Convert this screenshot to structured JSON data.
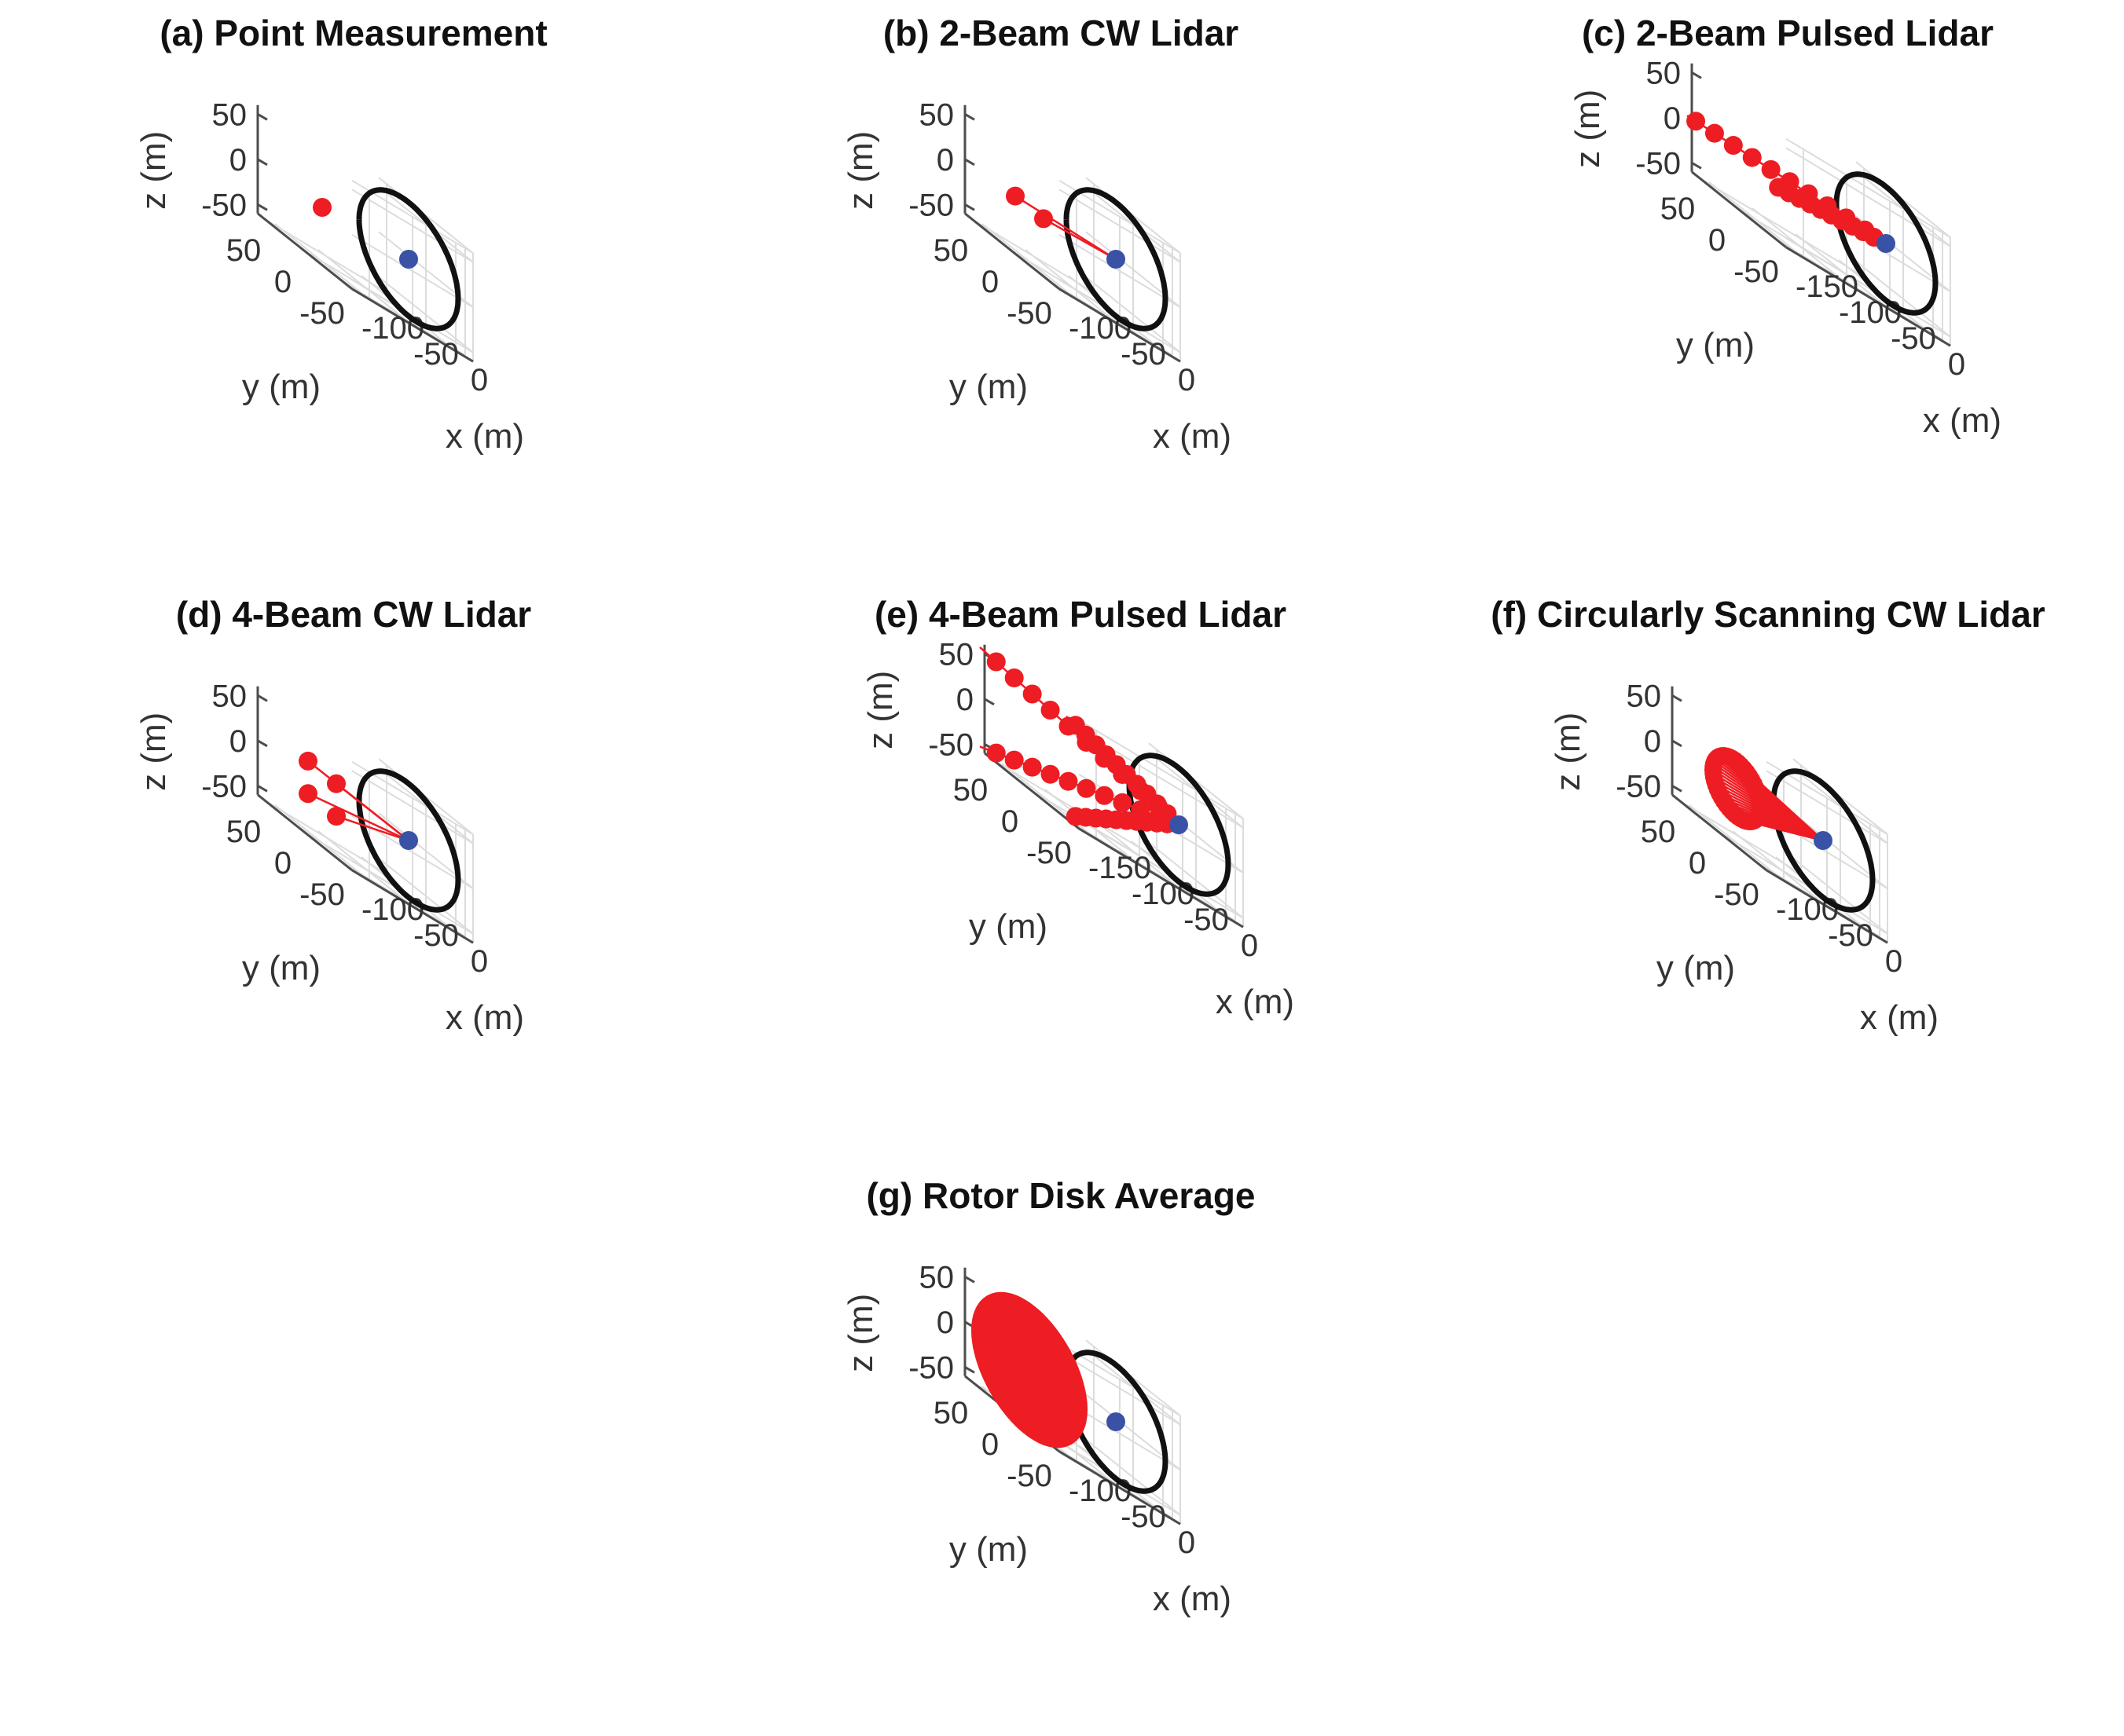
{
  "figure": {
    "colors": {
      "background": "#ffffff",
      "grid": "#dcdcdc",
      "axis": "#4d4d4d",
      "rotor": "#111111",
      "hub": "#3a52a5",
      "lidar": "#ee1d23"
    }
  },
  "chart_data": [
    {
      "id": "a",
      "type": "scatter3d",
      "title": "(a) Point Measurement",
      "xlabel": "x (m)",
      "ylabel": "y (m)",
      "zlabel": "z (m)",
      "xlim": [
        -120,
        20
      ],
      "ylim": [
        -60,
        60
      ],
      "zlim": [
        -60,
        60
      ],
      "xticks": [
        "-100",
        "-50",
        "0"
      ],
      "yticks": [
        "50",
        "0",
        "-50"
      ],
      "zticks": [
        "50",
        "0",
        "-50"
      ],
      "rotor": {
        "center": [
          0,
          0,
          0
        ],
        "diameter": 126
      },
      "hub": [
        0,
        0,
        0
      ],
      "series": [
        {
          "name": "measurement points",
          "mode": "point",
          "beams": [
            [
              -100,
              0,
              0
            ]
          ]
        }
      ]
    },
    {
      "id": "b",
      "type": "scatter3d",
      "title": "(b) 2-Beam CW Lidar",
      "xlabel": "x (m)",
      "ylabel": "y (m)",
      "zlabel": "z (m)",
      "xlim": [
        -120,
        20
      ],
      "ylim": [
        -60,
        60
      ],
      "zlim": [
        -60,
        60
      ],
      "xticks": [
        "-100",
        "-50",
        "0"
      ],
      "yticks": [
        "50",
        "0",
        "-50"
      ],
      "zticks": [
        "50",
        "0",
        "-50"
      ],
      "rotor": {
        "center": [
          0,
          0,
          0
        ],
        "diameter": 126
      },
      "hub": [
        0,
        0,
        0
      ],
      "series": [
        {
          "name": "beams",
          "mode": "cw",
          "beams": [
            [
              -100,
              18,
              0
            ],
            [
              -100,
              -18,
              0
            ]
          ]
        }
      ]
    },
    {
      "id": "c",
      "type": "scatter3d",
      "title": "(c) 2-Beam Pulsed Lidar",
      "xlabel": "x (m)",
      "ylabel": "y (m)",
      "zlabel": "z (m)",
      "xlim": [
        -170,
        20
      ],
      "ylim": [
        -60,
        60
      ],
      "zlim": [
        -60,
        60
      ],
      "xticks": [
        "-150",
        "-100",
        "-50",
        "0"
      ],
      "yticks": [
        "50",
        "0",
        "-50"
      ],
      "zticks": [
        "50",
        "0",
        "-50"
      ],
      "rotor": {
        "center": [
          0,
          0,
          0
        ],
        "diameter": 126
      },
      "hub": [
        0,
        0,
        0
      ],
      "series": [
        {
          "name": "beams",
          "mode": "pulsed",
          "gates": [
            20,
            180
          ],
          "n_gates": 10,
          "beams": [
            [
              -180,
              55,
              0
            ],
            [
              -180,
              -55,
              0
            ]
          ]
        }
      ]
    },
    {
      "id": "d",
      "type": "scatter3d",
      "title": "(d) 4-Beam CW Lidar",
      "xlabel": "x (m)",
      "ylabel": "y (m)",
      "zlabel": "z (m)",
      "xlim": [
        -120,
        20
      ],
      "ylim": [
        -60,
        60
      ],
      "zlim": [
        -60,
        60
      ],
      "xticks": [
        "-100",
        "-50",
        "0"
      ],
      "yticks": [
        "50",
        "0",
        "-50"
      ],
      "zticks": [
        "50",
        "0",
        "-50"
      ],
      "rotor": {
        "center": [
          0,
          0,
          0
        ],
        "diameter": 126
      },
      "hub": [
        0,
        0,
        0
      ],
      "series": [
        {
          "name": "beams",
          "mode": "cw",
          "beams": [
            [
              -100,
              18,
              18
            ],
            [
              -100,
              -18,
              18
            ],
            [
              -100,
              18,
              -18
            ],
            [
              -100,
              -18,
              -18
            ]
          ]
        }
      ]
    },
    {
      "id": "e",
      "type": "scatter3d",
      "title": "(e) 4-Beam Pulsed Lidar",
      "xlabel": "x (m)",
      "ylabel": "y (m)",
      "zlabel": "z (m)",
      "xlim": [
        -170,
        20
      ],
      "ylim": [
        -60,
        60
      ],
      "zlim": [
        -60,
        60
      ],
      "xticks": [
        "-150",
        "-100",
        "-50",
        "0"
      ],
      "yticks": [
        "50",
        "0",
        "-50"
      ],
      "zticks": [
        "50",
        "0",
        "-50"
      ],
      "rotor": {
        "center": [
          0,
          0,
          0
        ],
        "diameter": 126
      },
      "hub": [
        0,
        0,
        0
      ],
      "series": [
        {
          "name": "beams",
          "mode": "pulsed",
          "gates": [
            20,
            180
          ],
          "n_gates": 10,
          "beams": [
            [
              -180,
              55,
              55
            ],
            [
              -180,
              -55,
              55
            ],
            [
              -180,
              55,
              -55
            ],
            [
              -180,
              -55,
              -55
            ]
          ]
        }
      ]
    },
    {
      "id": "f",
      "type": "scatter3d",
      "title": "(f) Circularly Scanning CW Lidar",
      "xlabel": "x (m)",
      "ylabel": "y (m)",
      "zlabel": "z (m)",
      "xlim": [
        -120,
        20
      ],
      "ylim": [
        -60,
        60
      ],
      "zlim": [
        -60,
        60
      ],
      "xticks": [
        "-100",
        "-50",
        "0"
      ],
      "yticks": [
        "50",
        "0",
        "-50"
      ],
      "zticks": [
        "50",
        "0",
        "-50"
      ],
      "rotor": {
        "center": [
          0,
          0,
          0
        ],
        "diameter": 126
      },
      "hub": [
        0,
        0,
        0
      ],
      "series": [
        {
          "name": "scan circle",
          "mode": "scan",
          "scan_x": -100,
          "scan_radius": 30,
          "n_points": 50
        }
      ]
    },
    {
      "id": "g",
      "type": "scatter3d",
      "title": "(g) Rotor Disk Average",
      "xlabel": "x (m)",
      "ylabel": "y (m)",
      "zlabel": "z (m)",
      "xlim": [
        -120,
        20
      ],
      "ylim": [
        -60,
        60
      ],
      "zlim": [
        -60,
        60
      ],
      "xticks": [
        "-100",
        "-50",
        "0"
      ],
      "yticks": [
        "50",
        "0",
        "-50"
      ],
      "zticks": [
        "50",
        "0",
        "-50"
      ],
      "rotor": {
        "center": [
          0,
          0,
          0
        ],
        "diameter": 126
      },
      "hub": [
        0,
        0,
        0
      ],
      "series": [
        {
          "name": "rotor disk",
          "mode": "disk",
          "disk_x": -100,
          "disk_radius": 63
        }
      ]
    }
  ]
}
